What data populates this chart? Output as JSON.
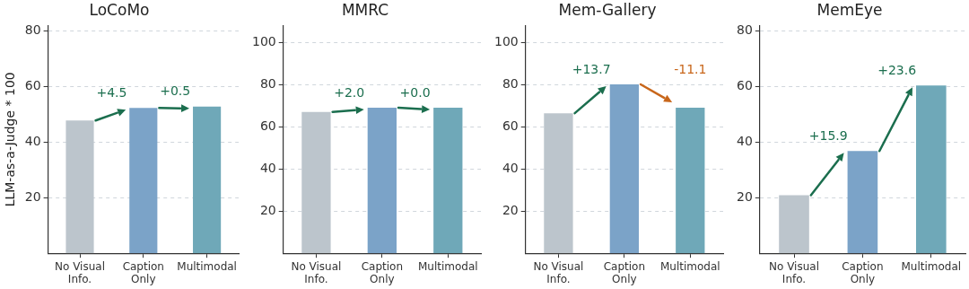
{
  "chart_data": [
    {
      "type": "bar",
      "title": "LoCoMo",
      "ylabel": "LLM-as-a-Judge * 100",
      "categories": [
        "No Visual Info.",
        "Caption Only",
        "Multimodal"
      ],
      "values": [
        47.8,
        52.3,
        52.8
      ],
      "colors": [
        "#bcc5cc",
        "#7ba3c8",
        "#6fa8b8"
      ],
      "ylim": [
        0,
        82
      ],
      "yticks": [
        20,
        40,
        60,
        80
      ],
      "grid": "y",
      "annotations": [
        "+4.5",
        "+0.5"
      ]
    },
    {
      "type": "bar",
      "title": "MMRC",
      "categories": [
        "No Visual Info.",
        "Caption Only",
        "Multimodal"
      ],
      "values": [
        67.0,
        69.0,
        69.0
      ],
      "colors": [
        "#bcc5cc",
        "#7ba3c8",
        "#6fa8b8"
      ],
      "ylim": [
        0,
        108
      ],
      "yticks": [
        20,
        40,
        60,
        80,
        100
      ],
      "grid": "y",
      "annotations": [
        "+2.0",
        "+0.0"
      ]
    },
    {
      "type": "bar",
      "title": "Mem-Gallery",
      "categories": [
        "No Visual Info.",
        "Caption Only",
        "Multimodal"
      ],
      "values": [
        66.4,
        80.1,
        69.0
      ],
      "colors": [
        "#bcc5cc",
        "#7ba3c8",
        "#6fa8b8"
      ],
      "ylim": [
        0,
        108
      ],
      "yticks": [
        20,
        40,
        60,
        80,
        100
      ],
      "grid": "y",
      "annotations": [
        "+13.7",
        "-11.1"
      ]
    },
    {
      "type": "bar",
      "title": "MemEye",
      "categories": [
        "No Visual Info.",
        "Caption Only",
        "Multimodal"
      ],
      "values": [
        20.9,
        36.8,
        60.4
      ],
      "colors": [
        "#bcc5cc",
        "#7ba3c8",
        "#6fa8b8"
      ],
      "ylim": [
        0,
        82
      ],
      "yticks": [
        20,
        40,
        60,
        80
      ],
      "grid": "y",
      "annotations": [
        "+15.9",
        "+23.6"
      ]
    }
  ]
}
